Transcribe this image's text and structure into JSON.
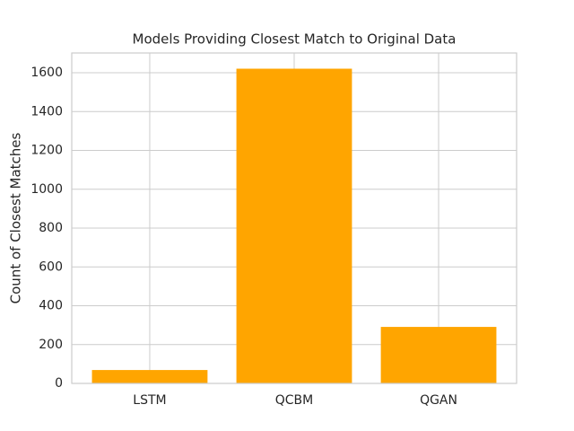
{
  "chart_data": {
    "type": "bar",
    "title": "Models Providing Closest Match to Original Data",
    "y_label": "Count of Closest Matches",
    "categories": [
      "LSTM",
      "QCBM",
      "QGAN"
    ],
    "values": [
      69,
      1621,
      291
    ],
    "color": "#ffa500",
    "ylim": [
      0,
      1702
    ],
    "yticks": [
      0,
      200,
      400,
      600,
      800,
      1000,
      1200,
      1400,
      1600
    ],
    "grid": true
  }
}
